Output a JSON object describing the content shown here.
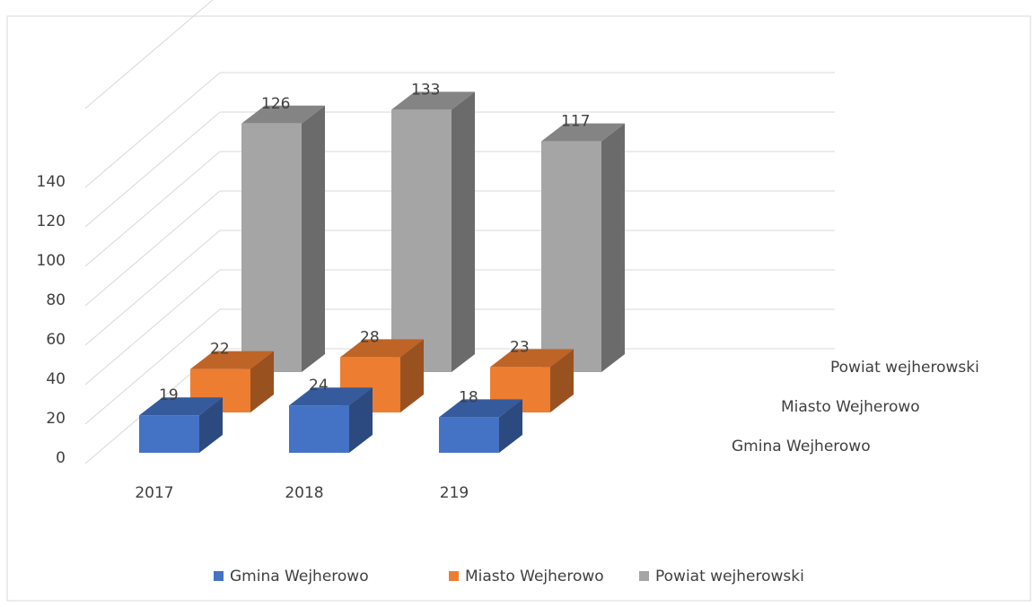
{
  "chart_data": {
    "type": "bar3d",
    "categories": [
      "2017",
      "2018",
      "219"
    ],
    "series": [
      {
        "name": "Gmina Wejherowo",
        "color": "#4472c4",
        "values": [
          19,
          24,
          18
        ]
      },
      {
        "name": "Miasto Wejherowo",
        "color": "#ed7d31",
        "values": [
          22,
          28,
          23
        ]
      },
      {
        "name": "Powiat wejherowski",
        "color": "#a5a5a5",
        "values": [
          126,
          133,
          117
        ]
      }
    ],
    "ylim": [
      0,
      180
    ],
    "yticks": [
      0,
      20,
      40,
      60,
      80,
      100,
      120,
      140
    ],
    "grid": true,
    "legend": "bottom"
  }
}
